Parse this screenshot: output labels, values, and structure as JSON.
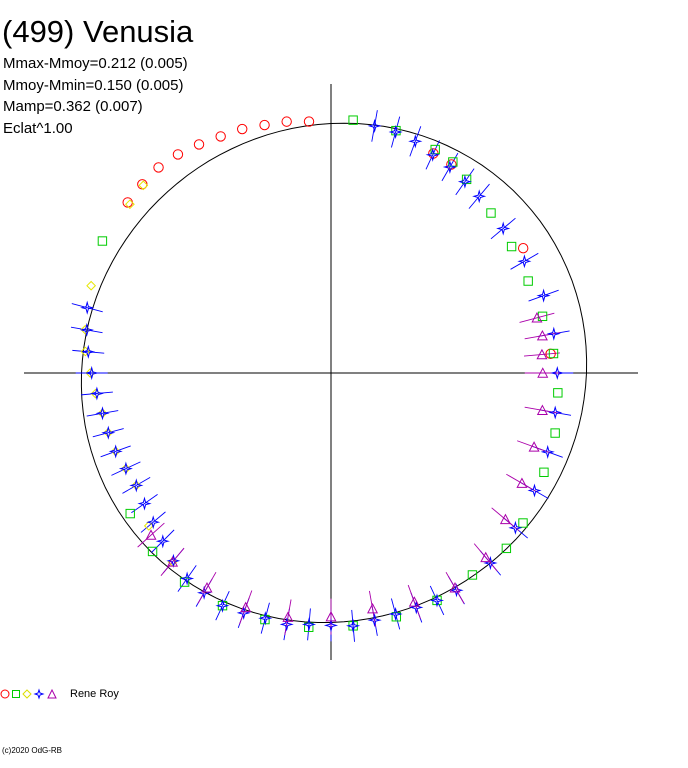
{
  "title": "(499) Venusia",
  "stats": [
    "Mmax-Mmoy=0.212 (0.005)",
    "Mmoy-Mmin=0.150 (0.005)",
    "Mamp=0.362 (0.007)",
    "Eclat^1.00"
  ],
  "legend_label": "Rene Roy",
  "copyright": "(c)2020 OdG-RB",
  "colors": {
    "red": "#ff0000",
    "green": "#00cc00",
    "yellow": "#ffff00",
    "blue": "#0000ff",
    "purple": "#aa00aa",
    "axes": "#000000"
  },
  "chart_data": {
    "type": "polar-lightcurve",
    "title": "(499) Venusia",
    "reference_circle": true,
    "axes": "cross",
    "amplitude": 0.362,
    "series": [
      {
        "marker": "circle",
        "color": "#ff0000",
        "points": [
          [
            95,
            0.28
          ],
          [
            100,
            0.3
          ],
          [
            105,
            0.31
          ],
          [
            110,
            0.33
          ],
          [
            115,
            0.34
          ],
          [
            120,
            0.36
          ],
          [
            125,
            0.38
          ],
          [
            130,
            0.39
          ],
          [
            135,
            0.38
          ],
          [
            140,
            0.37
          ],
          [
            65,
            0.21
          ],
          [
            60,
            0.2
          ],
          [
            33,
            0.12
          ],
          [
            5,
            0.06
          ]
        ]
      },
      {
        "marker": "square",
        "color": "#00cc00",
        "points": [
          [
            85,
            0.29
          ],
          [
            75,
            0.27
          ],
          [
            65,
            0.24
          ],
          [
            55,
            0.17
          ],
          [
            45,
            0.1
          ],
          [
            35,
            0.06
          ],
          [
            25,
            0.04
          ],
          [
            15,
            0.05
          ],
          [
            5,
            0.08
          ],
          [
            355,
            0.11
          ],
          [
            345,
            0.14
          ],
          [
            335,
            0.16
          ],
          [
            322,
            0.22
          ],
          [
            315,
            0.25
          ],
          [
            305,
            0.24
          ],
          [
            295,
            0.27
          ],
          [
            285,
            0.28
          ],
          [
            275,
            0.29
          ],
          [
            265,
            0.3
          ],
          [
            255,
            0.3
          ],
          [
            245,
            0.31
          ],
          [
            235,
            0.3
          ],
          [
            225,
            0.28
          ],
          [
            215,
            0.23
          ],
          [
            150,
            0.36
          ],
          [
            60,
            0.22
          ]
        ]
      },
      {
        "marker": "diamond",
        "color": "#ffff00",
        "points": [
          [
            170,
            0.26
          ],
          [
            175,
            0.24
          ],
          [
            180,
            0.2
          ],
          [
            185,
            0.17
          ],
          [
            190,
            0.14
          ],
          [
            195,
            0.13
          ],
          [
            200,
            0.12
          ],
          [
            205,
            0.1
          ],
          [
            210,
            0.09
          ],
          [
            140,
            0.35
          ],
          [
            135,
            0.37
          ],
          [
            160,
            0.3
          ],
          [
            220,
            0.18
          ],
          [
            230,
            0.24
          ]
        ]
      },
      {
        "marker": "star",
        "color": "#0000ff",
        "points": [
          [
            165,
            0.28
          ],
          [
            170,
            0.25
          ],
          [
            175,
            0.22
          ],
          [
            180,
            0.19
          ],
          [
            185,
            0.16
          ],
          [
            190,
            0.14
          ],
          [
            195,
            0.13
          ],
          [
            200,
            0.12
          ],
          [
            205,
            0.1
          ],
          [
            210,
            0.09
          ],
          [
            215,
            0.11
          ],
          [
            220,
            0.14
          ],
          [
            225,
            0.18
          ],
          [
            230,
            0.23
          ],
          [
            235,
            0.27
          ],
          [
            240,
            0.29
          ],
          [
            245,
            0.31
          ],
          [
            250,
            0.3
          ],
          [
            255,
            0.29
          ],
          [
            260,
            0.3
          ],
          [
            265,
            0.28
          ],
          [
            270,
            0.28
          ],
          [
            275,
            0.29
          ],
          [
            280,
            0.27
          ],
          [
            285,
            0.26
          ],
          [
            290,
            0.26
          ],
          [
            295,
            0.27
          ],
          [
            300,
            0.27
          ],
          [
            310,
            0.25
          ],
          [
            320,
            0.2
          ],
          [
            330,
            0.16
          ],
          [
            340,
            0.13
          ],
          [
            350,
            0.11
          ],
          [
            0,
            0.1
          ],
          [
            10,
            0.1
          ],
          [
            20,
            0.1
          ],
          [
            30,
            0.08
          ],
          [
            40,
            0.09
          ],
          [
            50,
            0.13
          ],
          [
            55,
            0.15
          ],
          [
            60,
            0.18
          ],
          [
            65,
            0.2
          ],
          [
            70,
            0.24
          ],
          [
            75,
            0.26
          ],
          [
            80,
            0.27
          ]
        ]
      },
      {
        "marker": "triangle",
        "color": "#aa00aa",
        "points": [
          [
            10,
            0.02
          ],
          [
            15,
            0.01
          ],
          [
            0,
            0.0
          ],
          [
            5,
            0.0
          ],
          [
            350,
            0.02
          ],
          [
            340,
            0.03
          ],
          [
            330,
            0.06
          ],
          [
            320,
            0.11
          ],
          [
            300,
            0.25
          ],
          [
            290,
            0.22
          ],
          [
            280,
            0.19
          ],
          [
            270,
            0.22
          ],
          [
            260,
            0.25
          ],
          [
            250,
            0.26
          ],
          [
            240,
            0.25
          ],
          [
            230,
            0.24
          ],
          [
            222,
            0.21
          ],
          [
            310,
            0.2
          ]
        ]
      }
    ]
  }
}
